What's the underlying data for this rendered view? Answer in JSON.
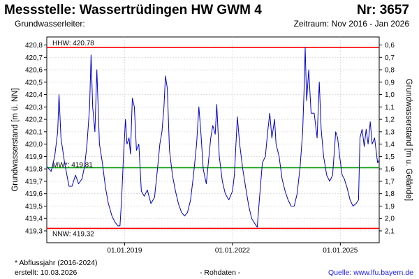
{
  "header": {
    "title": "Messstelle: Wassertrüdingen HW GWM 4",
    "number": "Nr: 3657",
    "subtitle_left": "Grundwasserleiter:",
    "subtitle_right": "Zeitraum: Nov 2016 - Jan 2026"
  },
  "footer": {
    "note": "* Abflussjahr (2016-2024)",
    "created": "erstellt:  10.03.2026",
    "raw": "- Rohdaten -",
    "source": "Quelle: www.lfu.bayern.de"
  },
  "colors": {
    "series": "#0000cc",
    "hhw_line": "#ff0000",
    "nnw_line": "#ff0000",
    "mw_line": "#009900",
    "grid": "#cccccc"
  },
  "chart_data": {
    "type": "line",
    "ylabel": "Grundwasserstand [m ü. NN]",
    "y2label": "Grundwasserstand [m u. Gelände]",
    "ylim": [
      419.3,
      420.8
    ],
    "y2lim": [
      2.1,
      0.6
    ],
    "y2_reference": 421.4,
    "yticks": [
      419.3,
      419.4,
      419.5,
      419.6,
      419.7,
      419.8,
      419.9,
      420.0,
      420.1,
      420.2,
      420.3,
      420.4,
      420.5,
      420.6,
      420.7,
      420.8
    ],
    "yticklabels": [
      "419,3",
      "419,4",
      "419,5",
      "419,6",
      "419,7",
      "419,8",
      "419,9",
      "420,0",
      "420,1",
      "420,2",
      "420,3",
      "420,4",
      "420,5",
      "420,6",
      "420,7",
      "420,8"
    ],
    "y2ticklabels": [
      "2,1",
      "2,0",
      "1,9",
      "1,8",
      "1,7",
      "1,6",
      "1,5",
      "1,4",
      "1,3",
      "1,2",
      "1,1",
      "1,0",
      "0,9",
      "0,8",
      "0,7",
      "0,6"
    ],
    "xlim": [
      "2016-11-01",
      "2026-01-31"
    ],
    "xticks": [
      "2019-01-01",
      "2022-01-01",
      "2025-01-01"
    ],
    "xticklabels": [
      "01.01.2019",
      "01.01.2022",
      "01.01.2025"
    ],
    "grid": true,
    "reference_lines": [
      {
        "label": "HHW: 420.78",
        "value": 420.78,
        "color_key": "hhw_line"
      },
      {
        "label": "MW*: 419.81",
        "value": 419.81,
        "color_key": "mw_line"
      },
      {
        "label": "NNW: 419.32",
        "value": 419.32,
        "color_key": "nnw_line"
      }
    ],
    "series": [
      {
        "points": [
          [
            "2016-11-01",
            419.82
          ],
          [
            "2016-12-15",
            419.78
          ],
          [
            "2017-01-20",
            419.9
          ],
          [
            "2017-02-20",
            420.1
          ],
          [
            "2017-03-05",
            420.4
          ],
          [
            "2017-03-25",
            420.05
          ],
          [
            "2017-05-01",
            419.85
          ],
          [
            "2017-06-15",
            419.66
          ],
          [
            "2017-07-15",
            419.66
          ],
          [
            "2017-08-20",
            419.75
          ],
          [
            "2017-09-20",
            419.68
          ],
          [
            "2017-10-25",
            419.72
          ],
          [
            "2017-11-20",
            419.82
          ],
          [
            "2017-12-15",
            420.0
          ],
          [
            "2018-01-10",
            420.3
          ],
          [
            "2018-01-25",
            420.72
          ],
          [
            "2018-02-10",
            420.3
          ],
          [
            "2018-03-05",
            420.1
          ],
          [
            "2018-03-25",
            420.6
          ],
          [
            "2018-04-20",
            420.0
          ],
          [
            "2018-05-20",
            419.85
          ],
          [
            "2018-06-20",
            419.65
          ],
          [
            "2018-07-20",
            419.52
          ],
          [
            "2018-08-25",
            419.42
          ],
          [
            "2018-09-25",
            419.37
          ],
          [
            "2018-10-25",
            419.34
          ],
          [
            "2018-11-15",
            419.34
          ],
          [
            "2018-12-01",
            419.55
          ],
          [
            "2018-12-20",
            419.9
          ],
          [
            "2019-01-10",
            420.2
          ],
          [
            "2019-01-25",
            420.0
          ],
          [
            "2019-02-15",
            420.05
          ],
          [
            "2019-03-01",
            419.92
          ],
          [
            "2019-03-20",
            420.37
          ],
          [
            "2019-04-10",
            420.3
          ],
          [
            "2019-05-01",
            419.95
          ],
          [
            "2019-05-25",
            420.0
          ],
          [
            "2019-06-20",
            419.62
          ],
          [
            "2019-07-20",
            419.58
          ],
          [
            "2019-08-20",
            419.63
          ],
          [
            "2019-09-25",
            419.52
          ],
          [
            "2019-11-01",
            419.57
          ],
          [
            "2019-12-01",
            419.8
          ],
          [
            "2019-12-25",
            420.0
          ],
          [
            "2020-01-15",
            420.1
          ],
          [
            "2020-02-05",
            420.3
          ],
          [
            "2020-02-20",
            420.55
          ],
          [
            "2020-03-10",
            420.45
          ],
          [
            "2020-04-01",
            419.95
          ],
          [
            "2020-05-01",
            419.75
          ],
          [
            "2020-06-01",
            419.62
          ],
          [
            "2020-07-01",
            419.52
          ],
          [
            "2020-08-01",
            419.45
          ],
          [
            "2020-09-01",
            419.42
          ],
          [
            "2020-10-01",
            419.45
          ],
          [
            "2020-11-01",
            419.55
          ],
          [
            "2020-12-01",
            419.75
          ],
          [
            "2021-01-01",
            420.0
          ],
          [
            "2021-01-25",
            420.3
          ],
          [
            "2021-02-15",
            420.08
          ],
          [
            "2021-03-10",
            419.8
          ],
          [
            "2021-04-10",
            419.68
          ],
          [
            "2021-05-25",
            420.05
          ],
          [
            "2021-06-15",
            420.15
          ],
          [
            "2021-07-10",
            420.08
          ],
          [
            "2021-07-25",
            420.32
          ],
          [
            "2021-08-20",
            419.9
          ],
          [
            "2021-09-20",
            419.7
          ],
          [
            "2021-10-20",
            419.6
          ],
          [
            "2021-11-25",
            419.55
          ],
          [
            "2022-01-01",
            419.62
          ],
          [
            "2022-01-20",
            419.75
          ],
          [
            "2022-02-20",
            420.22
          ],
          [
            "2022-03-15",
            420.0
          ],
          [
            "2022-04-15",
            419.8
          ],
          [
            "2022-05-15",
            419.65
          ],
          [
            "2022-06-15",
            419.5
          ],
          [
            "2022-07-15",
            419.4
          ],
          [
            "2022-08-15",
            419.36
          ],
          [
            "2022-09-10",
            419.33
          ],
          [
            "2022-10-01",
            419.55
          ],
          [
            "2022-11-01",
            419.85
          ],
          [
            "2022-12-01",
            419.9
          ],
          [
            "2022-12-25",
            420.1
          ],
          [
            "2023-01-15",
            420.25
          ],
          [
            "2023-02-05",
            420.05
          ],
          [
            "2023-03-05",
            420.2
          ],
          [
            "2023-03-20",
            420.0
          ],
          [
            "2023-04-20",
            419.9
          ],
          [
            "2023-05-20",
            419.72
          ],
          [
            "2023-06-20",
            419.62
          ],
          [
            "2023-07-20",
            419.55
          ],
          [
            "2023-08-20",
            419.5
          ],
          [
            "2023-09-20",
            419.5
          ],
          [
            "2023-10-20",
            419.6
          ],
          [
            "2023-11-20",
            419.82
          ],
          [
            "2023-12-15",
            420.1
          ],
          [
            "2024-01-01",
            420.5
          ],
          [
            "2024-01-10",
            420.78
          ],
          [
            "2024-01-25",
            420.35
          ],
          [
            "2024-02-15",
            420.6
          ],
          [
            "2024-03-10",
            420.25
          ],
          [
            "2024-04-10",
            420.25
          ],
          [
            "2024-05-10",
            420.05
          ],
          [
            "2024-06-01",
            420.5
          ],
          [
            "2024-06-20",
            420.12
          ],
          [
            "2024-07-15",
            419.9
          ],
          [
            "2024-08-15",
            419.75
          ],
          [
            "2024-09-15",
            419.7
          ],
          [
            "2024-10-15",
            419.75
          ],
          [
            "2024-11-15",
            420.1
          ],
          [
            "2024-12-05",
            420.05
          ],
          [
            "2024-12-25",
            419.9
          ],
          [
            "2025-01-20",
            419.75
          ],
          [
            "2025-02-10",
            419.72
          ],
          [
            "2025-03-10",
            419.65
          ],
          [
            "2025-04-10",
            419.55
          ],
          [
            "2025-05-10",
            419.5
          ],
          [
            "2025-06-10",
            419.52
          ],
          [
            "2025-07-05",
            419.55
          ],
          [
            "2025-07-20",
            420.05
          ],
          [
            "2025-08-10",
            420.12
          ],
          [
            "2025-09-01",
            419.98
          ],
          [
            "2025-09-20",
            420.12
          ],
          [
            "2025-10-10",
            420.0
          ],
          [
            "2025-11-01",
            420.18
          ],
          [
            "2025-11-20",
            420.0
          ],
          [
            "2025-12-15",
            420.05
          ],
          [
            "2026-01-15",
            419.85
          ],
          [
            "2026-01-31",
            419.87
          ]
        ]
      }
    ]
  }
}
